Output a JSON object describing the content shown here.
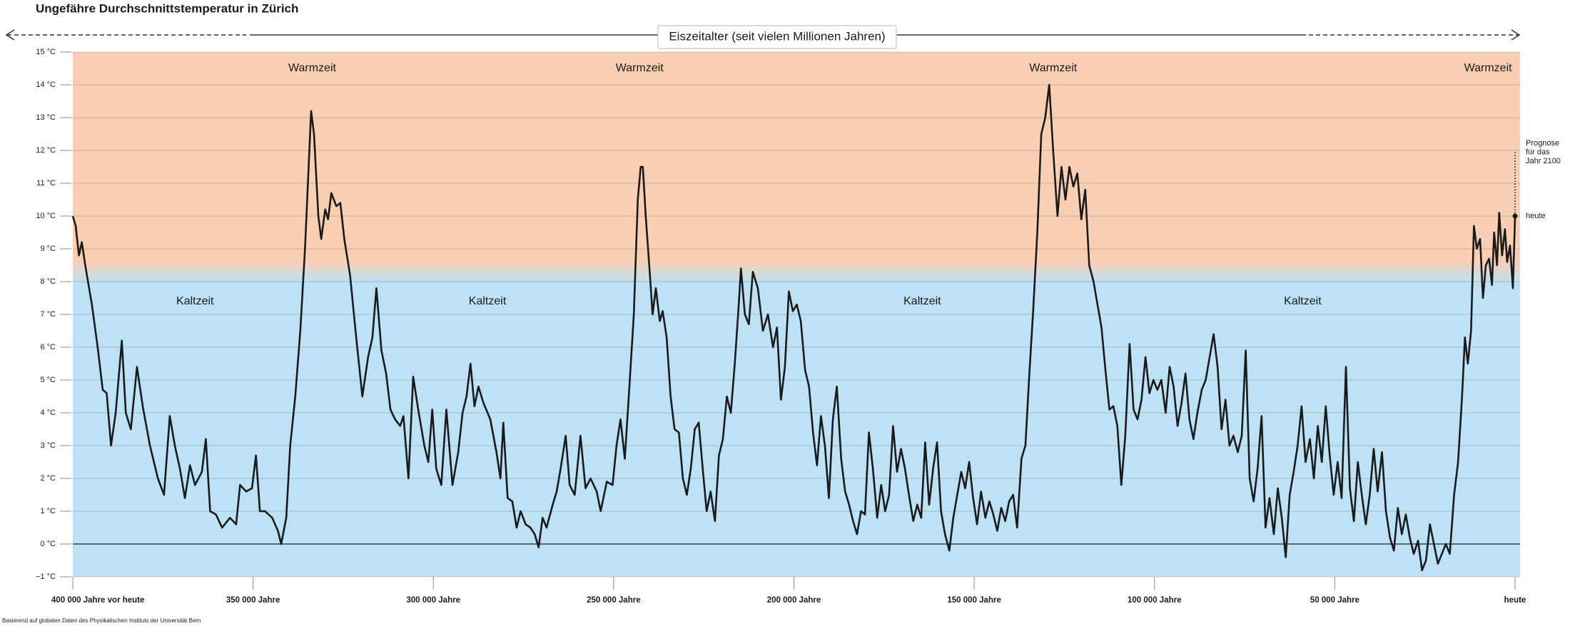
{
  "chart_data": {
    "type": "line",
    "title": "Ungefähre Durchschnittstemperatur in Zürich",
    "era_label": "Eiszeitalter (seit vielen Millionen Jahren)",
    "source": "Basierend auf globalen Daten des Physikalischen Instituts der Universität Bern",
    "color": "#1a1a1a",
    "x": [
      400000,
      399200,
      398300,
      397500,
      396400,
      394700,
      393100,
      391700,
      390600,
      389400,
      388100,
      386400,
      385300,
      383900,
      382200,
      380600,
      378600,
      376400,
      374700,
      373100,
      371700,
      370300,
      368900,
      367500,
      366100,
      364200,
      363100,
      361900,
      360300,
      358600,
      356400,
      354700,
      353600,
      351900,
      350300,
      349200,
      348100,
      346700,
      344700,
      343100,
      342200,
      340800,
      339700,
      338300,
      336900,
      335600,
      333900,
      333100,
      331900,
      331100,
      330000,
      329200,
      328300,
      326900,
      325800,
      324700,
      323100,
      321400,
      319700,
      318100,
      316900,
      315800,
      314400,
      313100,
      311900,
      310600,
      309200,
      308300,
      306900,
      305600,
      304200,
      302500,
      301400,
      300300,
      299200,
      297800,
      296400,
      294700,
      293100,
      291900,
      290800,
      289700,
      288600,
      287500,
      286100,
      284200,
      282500,
      281400,
      280600,
      279400,
      278100,
      276900,
      275800,
      274400,
      273100,
      271900,
      270800,
      269700,
      268600,
      266900,
      265800,
      264700,
      263300,
      262200,
      260800,
      259200,
      257800,
      256400,
      254700,
      253600,
      251900,
      250300,
      249200,
      248100,
      246900,
      245800,
      244400,
      243300,
      242500,
      241900,
      241100,
      240000,
      239200,
      238300,
      237200,
      236400,
      235300,
      234200,
      233100,
      231900,
      230800,
      229700,
      228600,
      227500,
      226400,
      225300,
      224200,
      223100,
      221900,
      220800,
      219700,
      218600,
      217500,
      216400,
      215300,
      214700,
      213600,
      212500,
      211400,
      210000,
      208600,
      207200,
      205800,
      204700,
      203600,
      202500,
      201400,
      200300,
      199200,
      198100,
      196900,
      195800,
      194700,
      193600,
      192500,
      191400,
      190300,
      189200,
      188100,
      186900,
      185800,
      184700,
      183600,
      182500,
      181400,
      180300,
      179200,
      178100,
      176900,
      175800,
      174700,
      173600,
      172500,
      171400,
      170300,
      169200,
      168100,
      166900,
      165800,
      164700,
      163600,
      162500,
      161400,
      160300,
      159200,
      158100,
      156900,
      155800,
      154700,
      153600,
      152500,
      151400,
      150300,
      149200,
      148100,
      146900,
      145800,
      144700,
      143600,
      142500,
      141400,
      140300,
      139200,
      138100,
      136900,
      135800,
      134700,
      133600,
      132500,
      131400,
      130300,
      129200,
      128100,
      126900,
      125800,
      124700,
      123600,
      122500,
      121400,
      120300,
      119200,
      118100,
      116900,
      115800,
      114700,
      113600,
      112500,
      111400,
      110300,
      109200,
      108100,
      106900,
      105800,
      104700,
      103600,
      102500,
      101400,
      100300,
      99200,
      98100,
      96900,
      95800,
      94700,
      93600,
      92500,
      91400,
      90300,
      89200,
      88100,
      86900,
      85800,
      84700,
      83600,
      82500,
      81400,
      80300,
      79200,
      78100,
      76900,
      75800,
      74700,
      73600,
      72500,
      71400,
      70300,
      69200,
      68100,
      66900,
      65800,
      64700,
      63600,
      62500,
      61400,
      60300,
      59200,
      58100,
      56900,
      55800,
      54700,
      53600,
      52500,
      51400,
      50300,
      49200,
      48100,
      46900,
      45800,
      44700,
      43600,
      42500,
      41400,
      40300,
      39200,
      38100,
      36900,
      35800,
      34700,
      33600,
      32500,
      31400,
      30300,
      29200,
      28100,
      26900,
      25800,
      24700,
      23600,
      22500,
      21400,
      20300,
      19200,
      18100,
      16900,
      15800,
      14700,
      13900,
      13100,
      12200,
      11400,
      10600,
      9700,
      8900,
      8100,
      7200,
      6400,
      5800,
      5000,
      4400,
      3600,
      2800,
      2200,
      1400,
      600,
      0
    ],
    "values": [
      10.0,
      9.7,
      8.8,
      9.2,
      8.4,
      7.3,
      6.0,
      4.7,
      4.6,
      3.0,
      4.0,
      6.2,
      4.0,
      3.5,
      5.4,
      4.2,
      3.0,
      2.0,
      1.5,
      3.9,
      3.0,
      2.3,
      1.4,
      2.4,
      1.8,
      2.2,
      3.2,
      1.0,
      0.9,
      0.5,
      0.8,
      0.6,
      1.8,
      1.6,
      1.7,
      2.7,
      1.0,
      1.0,
      0.8,
      0.4,
      0.0,
      0.8,
      3.0,
      4.5,
      6.5,
      9.0,
      13.2,
      12.5,
      10.0,
      9.3,
      10.2,
      9.9,
      10.7,
      10.3,
      10.4,
      9.3,
      8.2,
      6.3,
      4.5,
      5.7,
      6.3,
      7.8,
      5.9,
      5.2,
      4.1,
      3.8,
      3.6,
      3.9,
      2.0,
      5.1,
      4.1,
      3.0,
      2.5,
      4.1,
      2.3,
      1.8,
      4.1,
      1.8,
      2.8,
      4.0,
      4.5,
      5.5,
      4.2,
      4.8,
      4.3,
      3.8,
      2.8,
      2.0,
      3.7,
      1.4,
      1.3,
      0.5,
      1.0,
      0.6,
      0.5,
      0.3,
      -0.1,
      0.8,
      0.5,
      1.2,
      1.6,
      2.3,
      3.3,
      1.8,
      1.5,
      3.3,
      1.7,
      2.0,
      1.6,
      1.0,
      1.9,
      1.8,
      3.0,
      3.8,
      2.6,
      4.5,
      7.0,
      10.5,
      11.5,
      11.5,
      10.0,
      8.3,
      7.0,
      7.8,
      6.8,
      7.1,
      6.3,
      4.5,
      3.5,
      3.4,
      2.0,
      1.5,
      2.3,
      3.5,
      3.7,
      2.3,
      1.0,
      1.6,
      0.7,
      2.7,
      3.2,
      4.5,
      4.0,
      5.5,
      7.3,
      8.4,
      7.0,
      6.7,
      8.3,
      7.8,
      6.5,
      7.0,
      6.0,
      6.6,
      4.4,
      5.4,
      7.7,
      7.1,
      7.3,
      6.8,
      5.3,
      4.8,
      3.4,
      2.4,
      3.9,
      3.0,
      1.4,
      3.8,
      4.8,
      2.6,
      1.6,
      1.2,
      0.7,
      0.3,
      1.0,
      0.9,
      3.4,
      2.3,
      0.8,
      1.8,
      1.0,
      1.5,
      3.6,
      2.2,
      2.9,
      2.3,
      1.5,
      0.7,
      1.2,
      0.8,
      3.1,
      1.2,
      2.3,
      3.1,
      1.0,
      0.3,
      -0.2,
      0.8,
      1.5,
      2.2,
      1.7,
      2.5,
      1.4,
      0.6,
      1.6,
      0.8,
      1.3,
      0.9,
      0.4,
      1.1,
      0.7,
      1.3,
      1.5,
      0.5,
      2.6,
      3.0,
      5.2,
      7.2,
      9.5,
      12.5,
      13.0,
      14.0,
      12.0,
      10.0,
      11.5,
      10.5,
      11.5,
      10.9,
      11.3,
      9.9,
      10.8,
      8.5,
      8.0,
      7.3,
      6.6,
      5.3,
      4.1,
      4.2,
      3.6,
      1.8,
      3.3,
      6.1,
      4.1,
      3.8,
      4.4,
      5.7,
      4.6,
      5.0,
      4.7,
      5.0,
      4.0,
      5.4,
      4.8,
      3.6,
      4.3,
      5.2,
      3.8,
      3.2,
      4.0,
      4.7,
      5.0,
      5.7,
      6.4,
      5.4,
      3.5,
      4.4,
      3.0,
      3.3,
      2.8,
      3.3,
      5.9,
      2.0,
      1.3,
      2.3,
      3.9,
      0.5,
      1.4,
      0.3,
      1.7,
      0.8,
      -0.4,
      1.5,
      2.2,
      3.0,
      4.2,
      2.5,
      3.2,
      2.0,
      3.6,
      2.5,
      4.2,
      2.7,
      1.5,
      2.5,
      1.4,
      5.4,
      1.7,
      0.7,
      2.5,
      1.5,
      0.6,
      1.5,
      2.9,
      1.6,
      2.8,
      1.0,
      0.2,
      -0.2,
      1.1,
      0.3,
      0.9,
      0.2,
      -0.3,
      0.1,
      -0.8,
      -0.5,
      0.6,
      0.0,
      -0.6,
      -0.3,
      0.0,
      -0.3,
      1.5,
      2.5,
      4.5,
      6.3,
      5.5,
      6.5,
      9.7,
      9.0,
      9.3,
      7.5,
      8.5,
      8.7,
      7.9,
      9.5,
      8.5,
      10.1,
      8.8,
      9.6,
      8.6,
      9.1,
      7.8,
      10.0
    ],
    "xlim": [
      400000,
      0
    ],
    "xticks": [
      {
        "value": 400000,
        "label": "400 000 Jahre vor heute"
      },
      {
        "value": 350000,
        "label": "350 000 Jahre"
      },
      {
        "value": 300000,
        "label": "300 000 Jahre"
      },
      {
        "value": 250000,
        "label": "250 000 Jahre"
      },
      {
        "value": 200000,
        "label": "200 000 Jahre"
      },
      {
        "value": 150000,
        "label": "150 000 Jahre"
      },
      {
        "value": 100000,
        "label": "100 000 Jahre"
      },
      {
        "value": 50000,
        "label": "50 000 Jahre"
      },
      {
        "value": 0,
        "label": "heute"
      }
    ],
    "ylim": [
      -1,
      15
    ],
    "yticks": [
      {
        "value": -1,
        "label": "−1 °C"
      },
      {
        "value": 0,
        "label": "0 °C"
      },
      {
        "value": 1,
        "label": "1 °C"
      },
      {
        "value": 2,
        "label": "2 °C"
      },
      {
        "value": 3,
        "label": "3 °C"
      },
      {
        "value": 4,
        "label": "4 °C"
      },
      {
        "value": 5,
        "label": "5 °C"
      },
      {
        "value": 6,
        "label": "6 °C"
      },
      {
        "value": 7,
        "label": "7 °C"
      },
      {
        "value": 8,
        "label": "8 °C"
      },
      {
        "value": 9,
        "label": "9 °C"
      },
      {
        "value": 10,
        "label": "10 °C"
      },
      {
        "value": 11,
        "label": "11 °C"
      },
      {
        "value": 12,
        "label": "12 °C"
      },
      {
        "value": 13,
        "label": "13 °C"
      },
      {
        "value": 14,
        "label": "14 °C"
      },
      {
        "value": 15,
        "label": "15 °C"
      }
    ],
    "grid": true,
    "zones": [
      {
        "color": "#f9cfb3",
        "ylim": [
          8.6,
          15
        ]
      },
      {
        "color": "#bde1f5",
        "ylim": [
          -1,
          8
        ]
      }
    ],
    "annotations": [
      {
        "text": "Warmzeit",
        "x": 333600,
        "y": 14.5
      },
      {
        "text": "Warmzeit",
        "x": 242800,
        "y": 14.5
      },
      {
        "text": "Warmzeit",
        "x": 128100,
        "y": 14.5
      },
      {
        "text": "Warmzeit",
        "x": 7500,
        "y": 14.5
      },
      {
        "text": "Kaltzeit",
        "x": 366100,
        "y": 7.4
      },
      {
        "text": "Kaltzeit",
        "x": 285000,
        "y": 7.4
      },
      {
        "text": "Kaltzeit",
        "x": 164400,
        "y": 7.4
      },
      {
        "text": "Kaltzeit",
        "x": 58900,
        "y": 7.4
      }
    ],
    "today_label": "heute",
    "forecast": {
      "value": 12,
      "label": [
        "Prognose",
        "für das",
        "Jahr 2100"
      ]
    }
  }
}
